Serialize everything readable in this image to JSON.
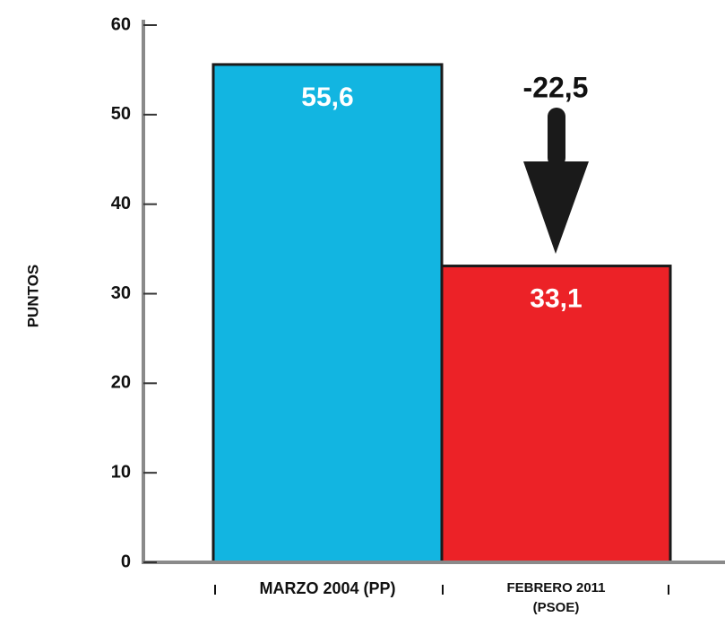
{
  "chart_data": {
    "type": "bar",
    "y_label": "PUNTOS",
    "categories": [
      "MARZO 2004 (PP)",
      "FEBRERO 2011 (PSOE)"
    ],
    "values": [
      55.6,
      33.1
    ],
    "value_labels": [
      "55,6",
      "33,1"
    ],
    "colors": [
      "#12b5e1",
      "#ec2227"
    ],
    "annotation": "-22,5",
    "ylim": [
      0,
      60
    ],
    "yticks": [
      0,
      10,
      20,
      30,
      40,
      50,
      60
    ]
  }
}
